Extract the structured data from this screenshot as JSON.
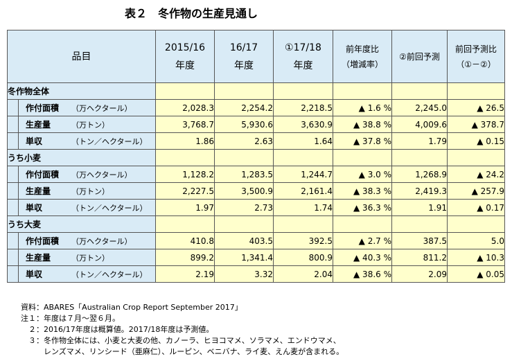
{
  "title": "表２　冬作物の生産見通し",
  "header": {
    "item": "品目",
    "col1_line1": "2015/16",
    "col1_line2": "年度",
    "col2_line1": "16/17",
    "col2_line2": "年度",
    "col3_line1": "①17/18",
    "col3_line2": "年度",
    "col4_line1": "前年度比",
    "col4_line2": "（増減率）",
    "col5": "②前回予測",
    "col6_line1": "前回予測比",
    "col6_line2": "（①－②）"
  },
  "sections": [
    {
      "name": "冬作物全体",
      "rows": [
        {
          "label": "作付面積",
          "unit": "（万ヘクタール）",
          "v1": "2,028.3",
          "v2": "2,254.2",
          "v3": "2,218.5",
          "v4": "▲ 1.6 %",
          "v5": "2,245.0",
          "v6": "▲ 26.5"
        },
        {
          "label": "生産量",
          "unit": "（万トン）",
          "v1": "3,768.7",
          "v2": "5,930.6",
          "v3": "3,630.9",
          "v4": "▲ 38.8 %",
          "v5": "4,009.6",
          "v6": "▲ 378.7"
        },
        {
          "label": "単収",
          "unit": "（トン／ヘクタール）",
          "v1": "1.86",
          "v2": "2.63",
          "v3": "1.64",
          "v4": "▲ 37.8 %",
          "v5": "1.79",
          "v6": "▲ 0.15"
        }
      ]
    },
    {
      "name": "うち小麦",
      "rows": [
        {
          "label": "作付面積",
          "unit": "（万ヘクタール）",
          "v1": "1,128.2",
          "v2": "1,283.5",
          "v3": "1,244.7",
          "v4": "▲ 3.0 %",
          "v5": "1,268.9",
          "v6": "▲ 24.2"
        },
        {
          "label": "生産量",
          "unit": "（万トン）",
          "v1": "2,227.5",
          "v2": "3,500.9",
          "v3": "2,161.4",
          "v4": "▲ 38.3 %",
          "v5": "2,419.3",
          "v6": "▲ 257.9"
        },
        {
          "label": "単収",
          "unit": "（トン／ヘクタール）",
          "v1": "1.97",
          "v2": "2.73",
          "v3": "1.74",
          "v4": "▲ 36.3 %",
          "v5": "1.91",
          "v6": "▲ 0.17"
        }
      ]
    },
    {
      "name": "うち大麦",
      "rows": [
        {
          "label": "作付面積",
          "unit": "（万ヘクタール）",
          "v1": "410.8",
          "v2": "403.5",
          "v3": "392.5",
          "v4": "▲ 2.7 %",
          "v5": "387.5",
          "v6": "5.0"
        },
        {
          "label": "生産量",
          "unit": "（万トン）",
          "v1": "899.2",
          "v2": "1,341.4",
          "v3": "800.9",
          "v4": "▲ 40.3 %",
          "v5": "811.2",
          "v6": "▲ 10.3"
        },
        {
          "label": "単収",
          "unit": "（トン／ヘクタール）",
          "v1": "2.19",
          "v2": "3.32",
          "v3": "2.04",
          "v4": "▲ 38.6 %",
          "v5": "2.09",
          "v6": "▲ 0.05"
        }
      ]
    }
  ],
  "notes": [
    "資料：ABARES「Australian Crop Report September 2017」",
    "注１：年度は７月～翌６月。",
    "　２：2016/17年度は概算値。2017/18年度は予測値。",
    "　３：冬作物全体には、小麦と大麦の他、カノーラ、ヒヨコマメ、ソラマメ、エンドウマメ、",
    "　　　レンズマメ、リンシード（亜麻仁）、ルーピン、ベニバナ、ライ麦、えん麦が含まれる。"
  ]
}
